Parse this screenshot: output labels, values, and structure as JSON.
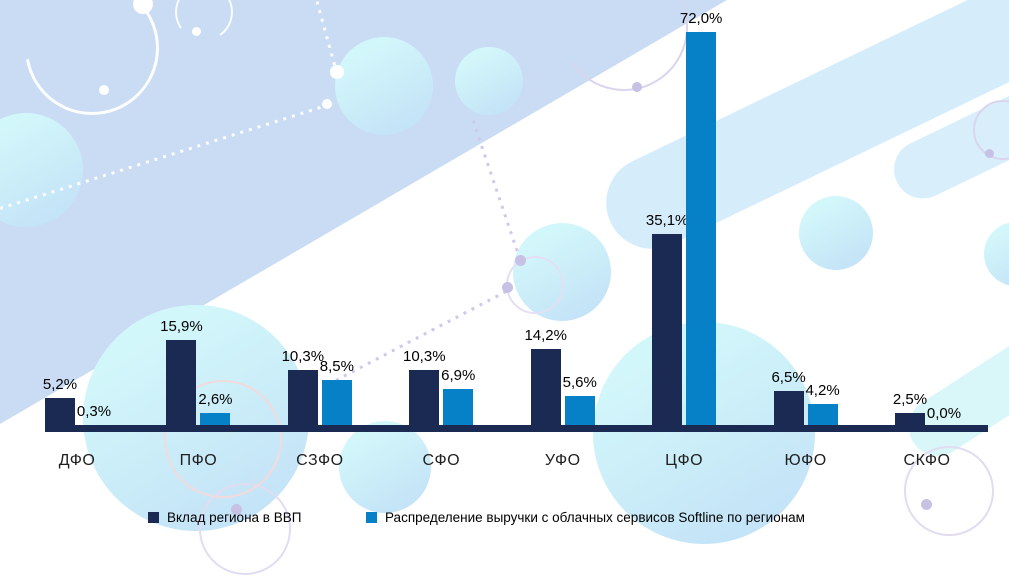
{
  "chart_data": {
    "type": "bar",
    "categories": [
      "ДФО",
      "ПФО",
      "СЗФО",
      "СФО",
      "УФО",
      "ЦФО",
      "ЮФО",
      "СКФО"
    ],
    "series": [
      {
        "name": "Вклад региона в ВВП",
        "color": "#1b2a52",
        "values": [
          5.2,
          15.9,
          10.3,
          10.3,
          14.2,
          35.1,
          6.5,
          2.5
        ],
        "labels": [
          "5,2%",
          "15,9%",
          "10,3%",
          "10,3%",
          "14,2%",
          "35,1%",
          "6,5%",
          "2,5%"
        ]
      },
      {
        "name": "Распределение выручки с облачных сервисов Softline по регионам",
        "color": "#0680c7",
        "values": [
          0.3,
          2.6,
          8.5,
          6.9,
          5.6,
          72.0,
          4.2,
          0.0
        ],
        "labels": [
          "0,3%",
          "2,6%",
          "8,5%",
          "6,9%",
          "5,6%",
          "72,0%",
          "4,2%",
          "0,0%"
        ]
      }
    ],
    "title": "",
    "xlabel": "",
    "ylabel": "",
    "ylim": [
      0,
      80
    ],
    "grid": false,
    "value_labels_shown": true,
    "decimal_separator": ",",
    "legend_position": "bottom"
  },
  "colors": {
    "gdp_series": "#1b2a52",
    "cloud_series": "#0680c7",
    "axis_line": "#1b2a52",
    "background_accent": "#c9dcf3"
  }
}
